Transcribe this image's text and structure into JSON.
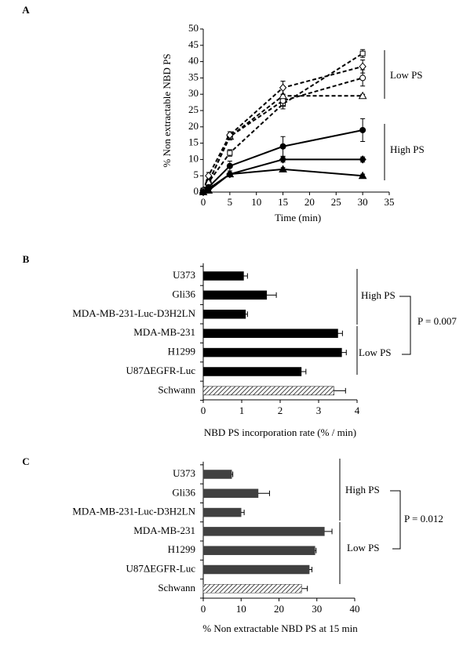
{
  "chart_data": [
    {
      "type": "line",
      "panel_label": "A",
      "y_label": "% Non extractable  NBD PS",
      "x_label": "Time  (min)",
      "x": [
        0,
        1,
        5,
        15,
        30
      ],
      "xlim": [
        0,
        35
      ],
      "xticks": [
        0,
        5,
        10,
        15,
        20,
        25,
        30,
        35
      ],
      "ylim": [
        0,
        50
      ],
      "yticks": [
        0,
        5,
        10,
        15,
        20,
        25,
        30,
        35,
        40,
        45,
        50
      ],
      "annotations": [
        "Low PS",
        "High PS"
      ],
      "series": [
        {
          "color": "#000000",
          "dashed": true,
          "marker": "square",
          "filled": false,
          "values": [
            0.5,
            3,
            12,
            27,
            42.5
          ],
          "errors": [
            0.3,
            0.5,
            1,
            1.5,
            1.2
          ]
        },
        {
          "color": "#000000",
          "dashed": true,
          "marker": "circle",
          "filled": false,
          "values": [
            0.5,
            3,
            17,
            28,
            35
          ],
          "errors": [
            0.3,
            0.5,
            1,
            1.5,
            2.5
          ]
        },
        {
          "color": "#000000",
          "dashed": true,
          "marker": "triangle",
          "filled": false,
          "values": [
            0.5,
            3,
            17,
            29.5,
            29.5
          ],
          "errors": [
            0.3,
            0.5,
            0.5,
            0.5,
            0.5
          ]
        },
        {
          "color": "#000000",
          "dashed": true,
          "marker": "diamond",
          "filled": false,
          "values": [
            0.5,
            5,
            17.5,
            32,
            38.5
          ],
          "errors": [
            0.3,
            1,
            1,
            2,
            2
          ]
        },
        {
          "color": "#000000",
          "dashed": false,
          "marker": "circle",
          "filled": true,
          "values": [
            0,
            1.5,
            8,
            14,
            19
          ],
          "errors": [
            0.3,
            0.5,
            1.5,
            3,
            3.5
          ]
        },
        {
          "color": "#000000",
          "dashed": false,
          "marker": "diamond",
          "filled": true,
          "values": [
            0,
            1,
            5.5,
            10,
            10
          ],
          "errors": [
            0.2,
            0.3,
            0.5,
            0.8,
            0.8
          ]
        },
        {
          "color": "#000000",
          "dashed": false,
          "marker": "triangle",
          "filled": true,
          "values": [
            0,
            0.5,
            5.5,
            7,
            5
          ],
          "errors": [
            0.2,
            0.3,
            0.5,
            0.5,
            0.5
          ]
        }
      ]
    },
    {
      "type": "hbar",
      "panel_label": "B",
      "x_label": "NBD PS incorporation  rate  (% / min)",
      "categories": [
        "U373",
        "Gli36",
        "MDA-MB-231-Luc-D3H2LN",
        "MDA-MB-231",
        "H1299",
        "U87ΔEGFR-Luc",
        "Schwann"
      ],
      "values": [
        1.05,
        1.65,
        1.1,
        3.5,
        3.6,
        2.55,
        3.4
      ],
      "errors": [
        0.1,
        0.25,
        0.05,
        0.12,
        0.12,
        0.12,
        0.3
      ],
      "hatched": [
        false,
        false,
        false,
        false,
        false,
        false,
        true
      ],
      "color": "#000000",
      "xlim": [
        0,
        4
      ],
      "xticks": [
        0,
        1,
        2,
        3,
        4
      ],
      "annotations": [
        "High  PS",
        "Low PS",
        "P = 0.007"
      ]
    },
    {
      "type": "hbar",
      "panel_label": "C",
      "x_label": "% Non extractable  NBD PS at 15 min",
      "categories": [
        "U373",
        "Gli36",
        "MDA-MB-231-Luc-D3H2LN",
        "MDA-MB-231",
        "H1299",
        "U87ΔEGFR-Luc",
        "Schwann"
      ],
      "values": [
        7.5,
        14.5,
        10,
        32,
        29.5,
        28,
        26
      ],
      "errors": [
        0.3,
        3,
        0.8,
        2,
        0.3,
        0.7,
        1.5
      ],
      "hatched": [
        false,
        false,
        false,
        false,
        false,
        false,
        true
      ],
      "color": "#404040",
      "xlim": [
        0,
        40
      ],
      "xticks": [
        0,
        10,
        20,
        30,
        40
      ],
      "annotations": [
        "High  PS",
        "Low PS",
        "P = 0.012"
      ]
    }
  ]
}
